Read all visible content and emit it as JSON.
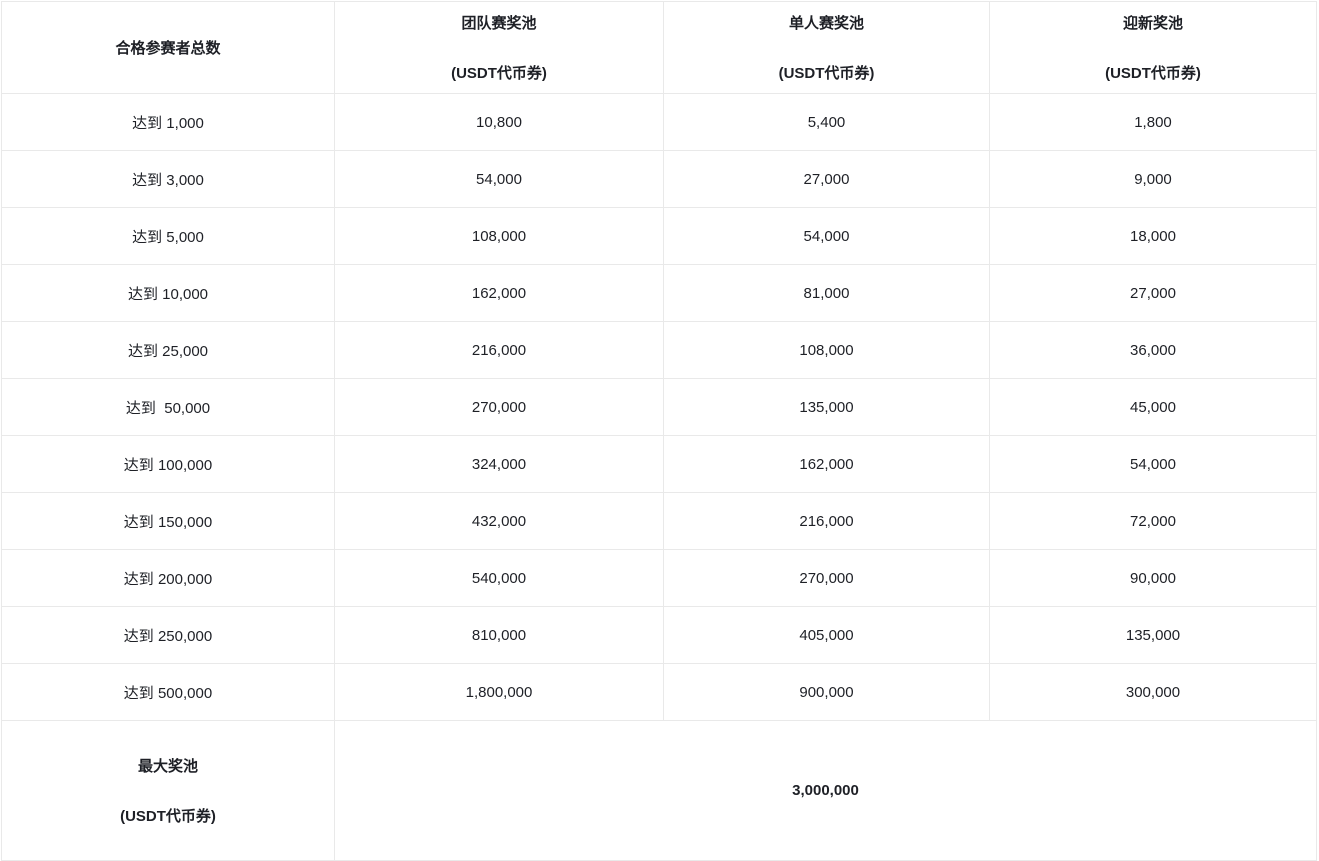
{
  "colors": {
    "border": "#e9e9e9",
    "text": "#1e2026",
    "background": "#ffffff"
  },
  "table": {
    "columns": [
      {
        "title": "合格参赛者总数",
        "subtitle": ""
      },
      {
        "title": "团队赛奖池",
        "subtitle": "(USDT代币券)"
      },
      {
        "title": "单人赛奖池",
        "subtitle": "(USDT代币券)"
      },
      {
        "title": "迎新奖池",
        "subtitle": "(USDT代币券)"
      }
    ],
    "rows": [
      {
        "participants": "达到 1,000",
        "team": "10,800",
        "individual": "5,400",
        "newcomer": "1,800"
      },
      {
        "participants": "达到 3,000",
        "team": "54,000",
        "individual": "27,000",
        "newcomer": "9,000"
      },
      {
        "participants": "达到 5,000",
        "team": "108,000",
        "individual": "54,000",
        "newcomer": "18,000"
      },
      {
        "participants": "达到 10,000",
        "team": "162,000",
        "individual": "81,000",
        "newcomer": "27,000"
      },
      {
        "participants": "达到 25,000",
        "team": "216,000",
        "individual": "108,000",
        "newcomer": "36,000"
      },
      {
        "participants": "达到  50,000",
        "team": "270,000",
        "individual": "135,000",
        "newcomer": "45,000"
      },
      {
        "participants": "达到 100,000",
        "team": "324,000",
        "individual": "162,000",
        "newcomer": "54,000"
      },
      {
        "participants": "达到 150,000",
        "team": "432,000",
        "individual": "216,000",
        "newcomer": "72,000"
      },
      {
        "participants": "达到 200,000",
        "team": "540,000",
        "individual": "270,000",
        "newcomer": "90,000"
      },
      {
        "participants": "达到 250,000",
        "team": "810,000",
        "individual": "405,000",
        "newcomer": "135,000"
      },
      {
        "participants": "达到 500,000",
        "team": "1,800,000",
        "individual": "900,000",
        "newcomer": "300,000"
      }
    ],
    "footer": {
      "label_line1": "最大奖池",
      "label_line2": "(USDT代币券)",
      "value": "3,000,000"
    }
  }
}
